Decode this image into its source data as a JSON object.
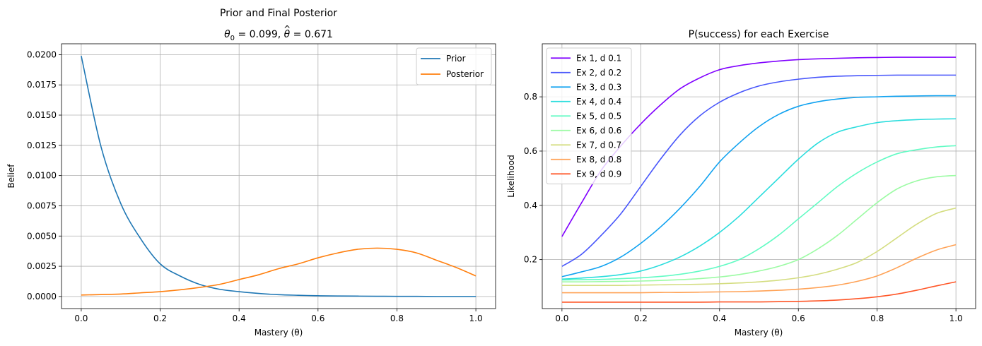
{
  "chart_data": [
    {
      "type": "line",
      "title": "Prior and Final Posterior",
      "subtitle_parts": [
        "θ",
        "0",
        " = 0.099, ",
        "θ",
        " = 0.671"
      ],
      "xlabel": "Mastery (θ)",
      "ylabel": "Belief",
      "xlim": [
        -0.05,
        1.05
      ],
      "ylim": [
        -0.001,
        0.0209
      ],
      "xticks": [
        0.0,
        0.2,
        0.4,
        0.6,
        0.8,
        1.0
      ],
      "xtick_labels": [
        "0.0",
        "0.2",
        "0.4",
        "0.6",
        "0.8",
        "1.0"
      ],
      "yticks": [
        0.0,
        0.0025,
        0.005,
        0.0075,
        0.01,
        0.0125,
        0.015,
        0.0175,
        0.02
      ],
      "ytick_labels": [
        "0.0000",
        "0.0025",
        "0.0050",
        "0.0075",
        "0.0100",
        "0.0125",
        "0.0150",
        "0.0175",
        "0.0200"
      ],
      "grid": true,
      "legend": "top-right",
      "x": [
        0.0,
        0.05,
        0.1,
        0.15,
        0.2,
        0.25,
        0.3,
        0.35,
        0.4,
        0.45,
        0.5,
        0.55,
        0.6,
        0.65,
        0.7,
        0.75,
        0.8,
        0.85,
        0.9,
        0.95,
        1.0
      ],
      "series": [
        {
          "name": "Prior",
          "color": "#1f77b4",
          "values": [
            0.0199,
            0.0124,
            0.0077,
            0.0048,
            0.0027,
            0.0017,
            0.001,
            0.0006,
            0.0004,
            0.00025,
            0.00015,
            0.0001,
            6e-05,
            4e-05,
            3e-05,
            2e-05,
            1e-05,
            1e-05,
            0.0,
            0.0,
            0.0
          ]
        },
        {
          "name": "Posterior",
          "color": "#ff7f0e",
          "values": [
            0.00012,
            0.00016,
            0.0002,
            0.0003,
            0.0004,
            0.00055,
            0.00075,
            0.001,
            0.0014,
            0.0018,
            0.0023,
            0.0027,
            0.0032,
            0.0036,
            0.0039,
            0.004,
            0.0039,
            0.0036,
            0.003,
            0.0024,
            0.0017
          ]
        }
      ]
    },
    {
      "type": "line",
      "title": "P(success) for each Exercise",
      "xlabel": "Mastery (θ)",
      "ylabel": "Likelihood",
      "xlim": [
        -0.05,
        1.05
      ],
      "ylim": [
        0.0195,
        0.9955
      ],
      "xticks": [
        0.0,
        0.2,
        0.4,
        0.6,
        0.8,
        1.0
      ],
      "xtick_labels": [
        "0.0",
        "0.2",
        "0.4",
        "0.6",
        "0.8",
        "1.0"
      ],
      "yticks": [
        0.2,
        0.4,
        0.6,
        0.8
      ],
      "ytick_labels": [
        "0.2",
        "0.4",
        "0.6",
        "0.8"
      ],
      "grid": true,
      "legend": "top-left",
      "x": [
        0.0,
        0.05,
        0.1,
        0.15,
        0.2,
        0.25,
        0.3,
        0.35,
        0.4,
        0.45,
        0.5,
        0.55,
        0.6,
        0.65,
        0.7,
        0.75,
        0.8,
        0.85,
        0.9,
        0.95,
        1.0
      ],
      "series": [
        {
          "name": "Ex 1, d 0.1",
          "color": "#8000ff",
          "values": [
            0.285,
            0.41,
            0.53,
            0.62,
            0.7,
            0.77,
            0.83,
            0.87,
            0.9,
            0.915,
            0.925,
            0.932,
            0.937,
            0.94,
            0.942,
            0.944,
            0.945,
            0.946,
            0.946,
            0.946,
            0.946
          ]
        },
        {
          "name": "Ex 2, d 0.2",
          "color": "#4856fb",
          "values": [
            0.175,
            0.22,
            0.29,
            0.37,
            0.47,
            0.57,
            0.66,
            0.73,
            0.78,
            0.815,
            0.84,
            0.855,
            0.865,
            0.872,
            0.876,
            0.878,
            0.879,
            0.88,
            0.88,
            0.88,
            0.88
          ]
        },
        {
          "name": "Ex 3, d 0.3",
          "color": "#10a2f0",
          "values": [
            0.137,
            0.155,
            0.175,
            0.21,
            0.26,
            0.32,
            0.39,
            0.47,
            0.56,
            0.63,
            0.69,
            0.735,
            0.765,
            0.782,
            0.792,
            0.798,
            0.8,
            0.802,
            0.803,
            0.804,
            0.804
          ]
        },
        {
          "name": "Ex 4, d 0.4",
          "color": "#2adddd",
          "values": [
            0.128,
            0.132,
            0.137,
            0.145,
            0.158,
            0.18,
            0.21,
            0.25,
            0.3,
            0.36,
            0.43,
            0.5,
            0.57,
            0.63,
            0.67,
            0.69,
            0.705,
            0.712,
            0.716,
            0.718,
            0.719
          ]
        },
        {
          "name": "Ex 5, d 0.5",
          "color": "#62fbc4",
          "values": [
            0.125,
            0.126,
            0.127,
            0.13,
            0.133,
            0.138,
            0.146,
            0.158,
            0.175,
            0.2,
            0.24,
            0.29,
            0.35,
            0.41,
            0.47,
            0.52,
            0.56,
            0.59,
            0.605,
            0.615,
            0.62
          ]
        },
        {
          "name": "Ex 6, d 0.6",
          "color": "#9cfba4",
          "values": [
            0.118,
            0.118,
            0.119,
            0.12,
            0.121,
            0.123,
            0.126,
            0.13,
            0.136,
            0.145,
            0.158,
            0.175,
            0.2,
            0.24,
            0.29,
            0.35,
            0.41,
            0.46,
            0.49,
            0.505,
            0.51
          ]
        },
        {
          "name": "Ex 7, d 0.7",
          "color": "#d4dd80",
          "values": [
            0.105,
            0.105,
            0.105,
            0.105,
            0.106,
            0.107,
            0.108,
            0.109,
            0.111,
            0.114,
            0.118,
            0.124,
            0.133,
            0.146,
            0.165,
            0.19,
            0.23,
            0.28,
            0.33,
            0.37,
            0.39
          ]
        },
        {
          "name": "Ex 8, d 0.8",
          "color": "#ffa256",
          "values": [
            0.078,
            0.078,
            0.078,
            0.078,
            0.078,
            0.079,
            0.079,
            0.08,
            0.081,
            0.082,
            0.084,
            0.087,
            0.091,
            0.097,
            0.106,
            0.12,
            0.14,
            0.17,
            0.205,
            0.235,
            0.255
          ]
        },
        {
          "name": "Ex 9, d 0.9",
          "color": "#ff5627",
          "values": [
            0.043,
            0.043,
            0.043,
            0.043,
            0.043,
            0.043,
            0.043,
            0.043,
            0.044,
            0.044,
            0.044,
            0.045,
            0.046,
            0.048,
            0.051,
            0.056,
            0.063,
            0.073,
            0.087,
            0.103,
            0.118
          ]
        }
      ]
    }
  ]
}
